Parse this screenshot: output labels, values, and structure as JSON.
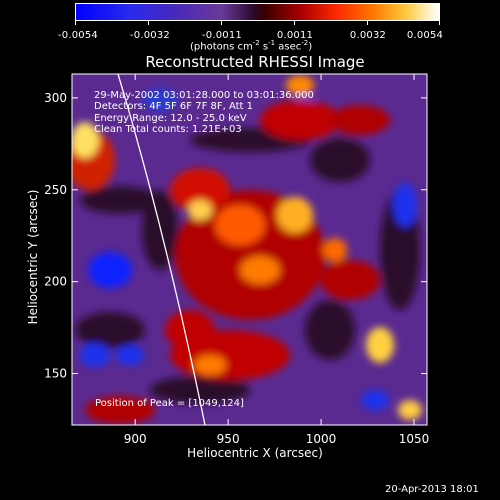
{
  "chart_data": {
    "type": "heatmap",
    "title": "Reconstructed RHESSI Image",
    "xlabel": "Heliocentric X (arcsec)",
    "ylabel": "Heliocentric Y (arcsec)",
    "xlim": [
      866,
      1057
    ],
    "ylim": [
      122,
      313
    ],
    "x_ticks": [
      900,
      950,
      1000,
      1050
    ],
    "y_ticks": [
      150,
      200,
      250,
      300
    ],
    "colorbar": {
      "ticks": [
        "-0.0054",
        "-0.0032",
        "-0.0011",
        "0.0011",
        "0.0032",
        "0.0054"
      ],
      "unit_text": "(photons cm-2 s-1 asec-2)",
      "range": [
        -0.0054,
        0.0054
      ]
    },
    "annotations": {
      "time_range": "29-May-2002 03:01:28.000 to 03:01:36.000",
      "detectors": "Detectors: 4F 5F 6F 7F 8F, Att 1",
      "energy": "Energy Range: 12.0 - 25.0 keV",
      "clean": "Clean    Total counts: 1.21E+03",
      "peak": "Position of Peak = [1049,124]"
    },
    "limb": "solar limb curve",
    "colors": {
      "background": "#000000",
      "low": "#0000ff",
      "mid": "#2a0a2a",
      "high": "#ffffff"
    }
  },
  "footer": {
    "date": "20-Apr-2013 18:01"
  }
}
